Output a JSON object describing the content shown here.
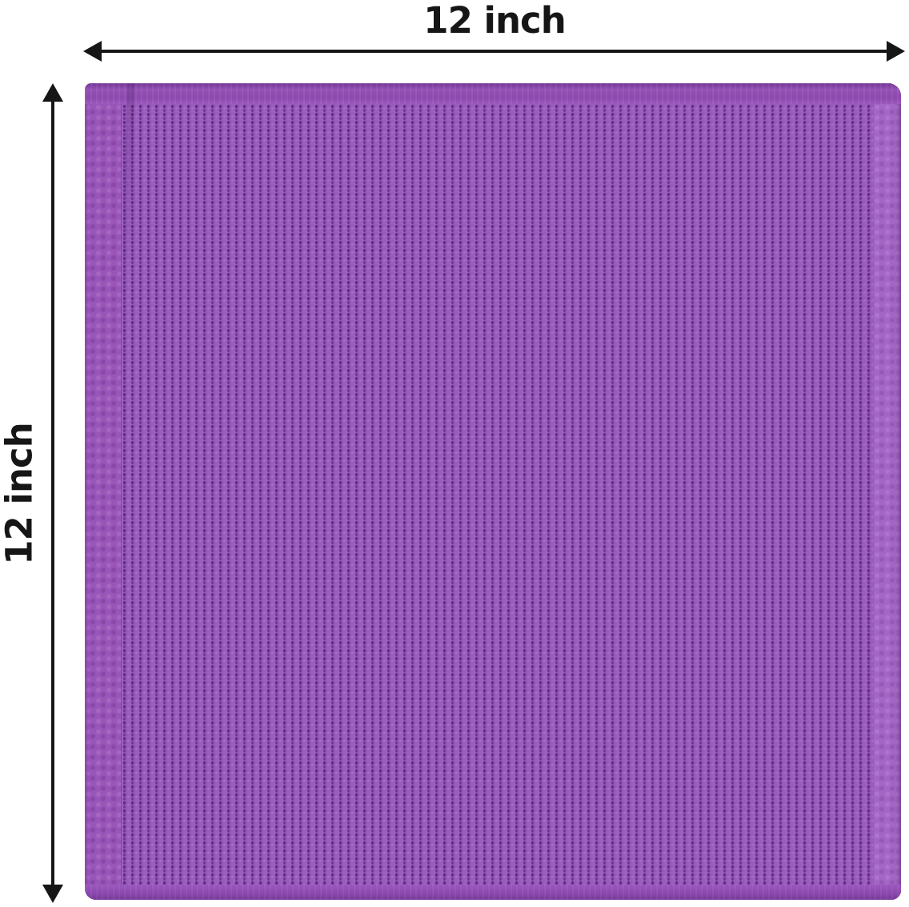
{
  "diagram": {
    "type": "product-dimension-diagram",
    "product": "purple waffle-weave cloth swatch",
    "dimensions": {
      "width": {
        "label": "12 inch"
      },
      "height": {
        "label": "12 inch"
      }
    },
    "colors": {
      "background": "#ffffff",
      "arrow": "#161616",
      "label_text": "#161616",
      "fabric_base": "#9a5abc",
      "fabric_texture_dark": "#5e2b83",
      "fabric_texture_mid": "#6c3a94",
      "fabric_texture_light": "#a96fcb",
      "fabric_hem": "#8d48ae",
      "fabric_side_band": "#a465c5",
      "fabric_edge": "#7a3d9c"
    }
  }
}
